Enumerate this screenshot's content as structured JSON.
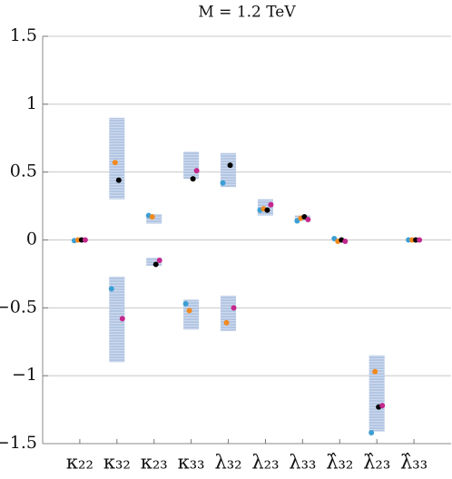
{
  "chart_data": {
    "type": "scatter",
    "title": "M = 1.2 TeV",
    "categories": [
      "κ₂₂",
      "κ₃₂",
      "κ₂₃",
      "κ₃₃",
      "λ₃₂",
      "λ₂₃",
      "λ₃₃",
      "λ̂₃₂",
      "λ̂₂₃",
      "λ̂₃₃"
    ],
    "series": [
      {
        "color": "#3b9fd4",
        "values": [
          -0.005,
          -0.36,
          0.18,
          -0.47,
          0.42,
          0.22,
          0.14,
          0.01,
          -1.42,
          0
        ]
      },
      {
        "color": "#f28a1e",
        "values": [
          0,
          0.57,
          0.17,
          -0.52,
          -0.61,
          0.23,
          0.16,
          -0.01,
          -0.97,
          0
        ]
      },
      {
        "color": "#000000",
        "values": [
          0,
          0.44,
          -0.18,
          0.45,
          0.55,
          0.22,
          0.17,
          0,
          -1.23,
          0
        ]
      },
      {
        "color": "#c4288c",
        "values": [
          0,
          -0.58,
          -0.15,
          0.51,
          -0.5,
          0.26,
          0.15,
          -0.01,
          -1.22,
          0
        ]
      }
    ],
    "ranges": [
      [],
      [
        [
          0.3,
          0.9
        ],
        [
          -0.9,
          -0.27
        ]
      ],
      [
        [
          0.12,
          0.19
        ],
        [
          -0.19,
          -0.13
        ]
      ],
      [
        [
          0.45,
          0.65
        ],
        [
          -0.66,
          -0.44
        ]
      ],
      [
        [
          0.39,
          0.64
        ],
        [
          -0.67,
          -0.41
        ]
      ],
      [
        [
          0.18,
          0.3
        ]
      ],
      [
        [
          0.14,
          0.18
        ]
      ],
      [],
      [
        [
          -1.41,
          -0.85
        ]
      ],
      []
    ],
    "range_color": "#b3c6e3",
    "ylim": [
      -1.5,
      1.5
    ],
    "yticks": [
      {
        "value": -1.5,
        "label": "−1.5"
      },
      {
        "value": -1,
        "label": "−1"
      },
      {
        "value": -0.5,
        "label": "−0.5"
      },
      0,
      0.5,
      1,
      1.5
    ],
    "grid": true
  }
}
